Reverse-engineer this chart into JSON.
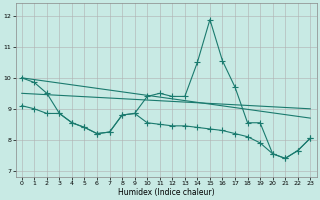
{
  "xlabel": "Humidex (Indice chaleur)",
  "xlim": [
    -0.5,
    23.5
  ],
  "ylim": [
    6.8,
    12.4
  ],
  "yticks": [
    7,
    8,
    9,
    10,
    11,
    12
  ],
  "xticks": [
    0,
    1,
    2,
    3,
    4,
    5,
    6,
    7,
    8,
    9,
    10,
    11,
    12,
    13,
    14,
    15,
    16,
    17,
    18,
    19,
    20,
    21,
    22,
    23
  ],
  "background_color": "#c8eae4",
  "grid_color": "#b0b0b0",
  "line_color": "#1a7a6e",
  "line_width": 0.8,
  "marker": "+",
  "markersize": 4,
  "markeredgewidth": 0.8,
  "main_line_x": [
    0,
    1,
    2,
    3,
    4,
    5,
    6,
    7,
    8,
    9,
    10,
    11,
    12,
    13,
    14,
    15,
    16,
    17,
    18,
    19,
    20,
    21,
    22,
    23
  ],
  "main_line_y": [
    10.0,
    9.85,
    9.5,
    8.85,
    8.55,
    8.4,
    8.2,
    8.25,
    8.8,
    8.85,
    9.4,
    9.5,
    9.4,
    9.4,
    10.5,
    11.88,
    10.55,
    9.7,
    8.55,
    8.55,
    7.55,
    7.4,
    7.65,
    8.05
  ],
  "low_line_x": [
    0,
    1,
    2,
    3,
    4,
    5,
    6,
    7,
    8,
    9,
    10,
    11,
    12,
    13,
    14,
    15,
    16,
    17,
    18,
    19,
    20,
    21,
    22,
    23
  ],
  "low_line_y": [
    9.1,
    9.0,
    8.85,
    8.85,
    8.55,
    8.4,
    8.2,
    8.25,
    8.8,
    8.85,
    8.55,
    8.5,
    8.45,
    8.45,
    8.4,
    8.35,
    8.3,
    8.2,
    8.1,
    7.9,
    7.55,
    7.4,
    7.65,
    8.05
  ],
  "top_line_x": [
    0,
    23
  ],
  "top_line_y": [
    10.0,
    8.7
  ],
  "mid_line_x": [
    0,
    23
  ],
  "mid_line_y": [
    9.5,
    9.0
  ]
}
